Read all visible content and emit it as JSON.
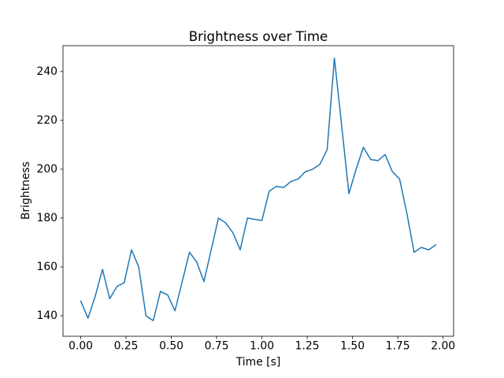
{
  "chart_data": {
    "type": "line",
    "title": "Brightness over Time",
    "xlabel": "Time [s]",
    "ylabel": "Brightness",
    "line_color": "#1f77b4",
    "axis_color": "#000000",
    "background_color": "#ffffff",
    "line_width": 1.5,
    "grid": false,
    "legend": "none",
    "xlim": [
      -0.098,
      2.058
    ],
    "ylim": [
      131.6,
      250.6
    ],
    "xticks": [
      0.0,
      0.25,
      0.5,
      0.75,
      1.0,
      1.25,
      1.5,
      1.75,
      2.0
    ],
    "xtick_labels": [
      "0.00",
      "0.25",
      "0.50",
      "0.75",
      "1.00",
      "1.25",
      "1.50",
      "1.75",
      "2.00"
    ],
    "yticks": [
      140,
      160,
      180,
      200,
      220,
      240
    ],
    "ytick_labels": [
      "140",
      "160",
      "180",
      "200",
      "220",
      "240"
    ],
    "x": [
      0.0,
      0.04,
      0.08,
      0.12,
      0.16,
      0.2,
      0.24,
      0.28,
      0.32,
      0.36,
      0.4,
      0.44,
      0.48,
      0.52,
      0.56,
      0.6,
      0.64,
      0.68,
      0.72,
      0.76,
      0.8,
      0.84,
      0.88,
      0.92,
      0.96,
      1.0,
      1.04,
      1.08,
      1.12,
      1.16,
      1.2,
      1.24,
      1.28,
      1.32,
      1.36,
      1.4,
      1.44,
      1.48,
      1.52,
      1.56,
      1.6,
      1.64,
      1.68,
      1.72,
      1.76,
      1.8,
      1.84,
      1.88,
      1.92,
      1.96
    ],
    "y": [
      146,
      139,
      148,
      159,
      147,
      152,
      153.5,
      167,
      160,
      140,
      138,
      150,
      148.5,
      142,
      154,
      166,
      162,
      154,
      167,
      180,
      178,
      174,
      167,
      180,
      179.5,
      179,
      191,
      193,
      192.5,
      195,
      196,
      199,
      200,
      202,
      208,
      245.5,
      218,
      190,
      200,
      209,
      204,
      203.5,
      206,
      199,
      196,
      182,
      166,
      168,
      167,
      169
    ]
  }
}
